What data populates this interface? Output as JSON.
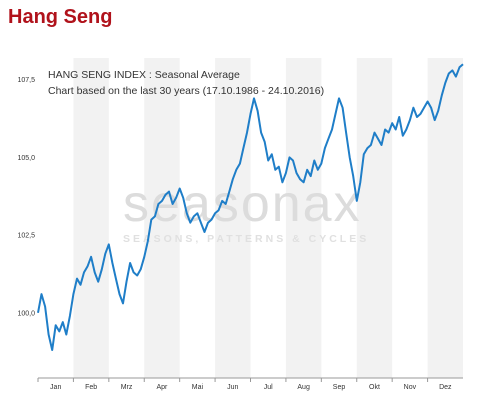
{
  "header": {
    "title": "Hang Seng"
  },
  "watermark": {
    "brand": "seasonax",
    "tagline": "SEASONS, PATTERNS & CYCLES"
  },
  "colors": {
    "title": "#b0121b",
    "line": "#1f7ec8",
    "band": "#f2f2f2"
  },
  "chart_data": {
    "type": "line",
    "title": "HANG SENG INDEX : Seasonal Average",
    "subtitle": "Chart based on the last 30 years (17.10.1986 - 24.10.2016)",
    "xlabel": "",
    "ylabel": "",
    "categories": [
      "Jan",
      "Feb",
      "Mrz",
      "Apr",
      "Mai",
      "Jun",
      "Jul",
      "Aug",
      "Sep",
      "Okt",
      "Nov",
      "Dez"
    ],
    "y_ticks": [
      "100,0",
      "102,5",
      "105,0",
      "107,5"
    ],
    "ylim": [
      97.9,
      108.2
    ],
    "grid": "alternating month bands",
    "series": [
      {
        "x": [
          0,
          0.1,
          0.2,
          0.3,
          0.4,
          0.5,
          0.6,
          0.7,
          0.8,
          0.9,
          1.0,
          1.1,
          1.2,
          1.3,
          1.4,
          1.5,
          1.6,
          1.7,
          1.8,
          1.9,
          2.0,
          2.1,
          2.2,
          2.3,
          2.4,
          2.5,
          2.6,
          2.7,
          2.8,
          2.9,
          3.0,
          3.1,
          3.2,
          3.3,
          3.4,
          3.5,
          3.6,
          3.7,
          3.8,
          3.9,
          4.0,
          4.1,
          4.2,
          4.3,
          4.4,
          4.5,
          4.6,
          4.7,
          4.8,
          4.9,
          5.0,
          5.1,
          5.2,
          5.3,
          5.4,
          5.5,
          5.6,
          5.7,
          5.8,
          5.9,
          6.0,
          6.1,
          6.2,
          6.3,
          6.4,
          6.5,
          6.6,
          6.7,
          6.8,
          6.9,
          7.0,
          7.1,
          7.2,
          7.3,
          7.4,
          7.5,
          7.6,
          7.7,
          7.8,
          7.9,
          8.0,
          8.1,
          8.2,
          8.3,
          8.4,
          8.5,
          8.6,
          8.7,
          8.8,
          8.9,
          9.0,
          9.1,
          9.2,
          9.3,
          9.4,
          9.5,
          9.6,
          9.7,
          9.8,
          9.9,
          10.0,
          10.1,
          10.2,
          10.3,
          10.4,
          10.5,
          10.6,
          10.7,
          10.8,
          10.9,
          11.0,
          11.1,
          11.2,
          11.3,
          11.4,
          11.5,
          11.6,
          11.7,
          11.8,
          11.9,
          12.0
        ],
        "y": [
          100.0,
          100.6,
          100.2,
          99.3,
          98.8,
          99.6,
          99.4,
          99.7,
          99.3,
          99.9,
          100.6,
          101.1,
          100.9,
          101.3,
          101.5,
          101.8,
          101.3,
          101.0,
          101.4,
          101.9,
          102.2,
          101.6,
          101.1,
          100.6,
          100.3,
          101.0,
          101.6,
          101.3,
          101.2,
          101.4,
          101.8,
          102.3,
          103.0,
          103.1,
          103.5,
          103.6,
          103.8,
          103.9,
          103.5,
          103.7,
          104.0,
          103.7,
          103.2,
          102.9,
          103.1,
          103.2,
          102.9,
          102.6,
          102.9,
          103.0,
          103.2,
          103.3,
          103.6,
          103.5,
          103.9,
          104.3,
          104.6,
          104.8,
          105.3,
          105.8,
          106.4,
          106.9,
          106.5,
          105.8,
          105.5,
          104.9,
          105.1,
          104.6,
          104.7,
          104.2,
          104.5,
          105.0,
          104.9,
          104.5,
          104.3,
          104.2,
          104.6,
          104.4,
          104.9,
          104.6,
          104.8,
          105.3,
          105.6,
          105.9,
          106.4,
          106.9,
          106.6,
          105.8,
          105.0,
          104.4,
          103.6,
          104.2,
          105.1,
          105.3,
          105.4,
          105.8,
          105.6,
          105.4,
          105.9,
          105.8,
          106.1,
          105.9,
          106.3,
          105.7,
          105.9,
          106.2,
          106.6,
          106.3,
          106.4,
          106.6,
          106.8,
          106.6,
          106.2,
          106.5,
          107.0,
          107.4,
          107.7,
          107.8,
          107.6,
          107.9,
          108.0
        ]
      }
    ]
  }
}
